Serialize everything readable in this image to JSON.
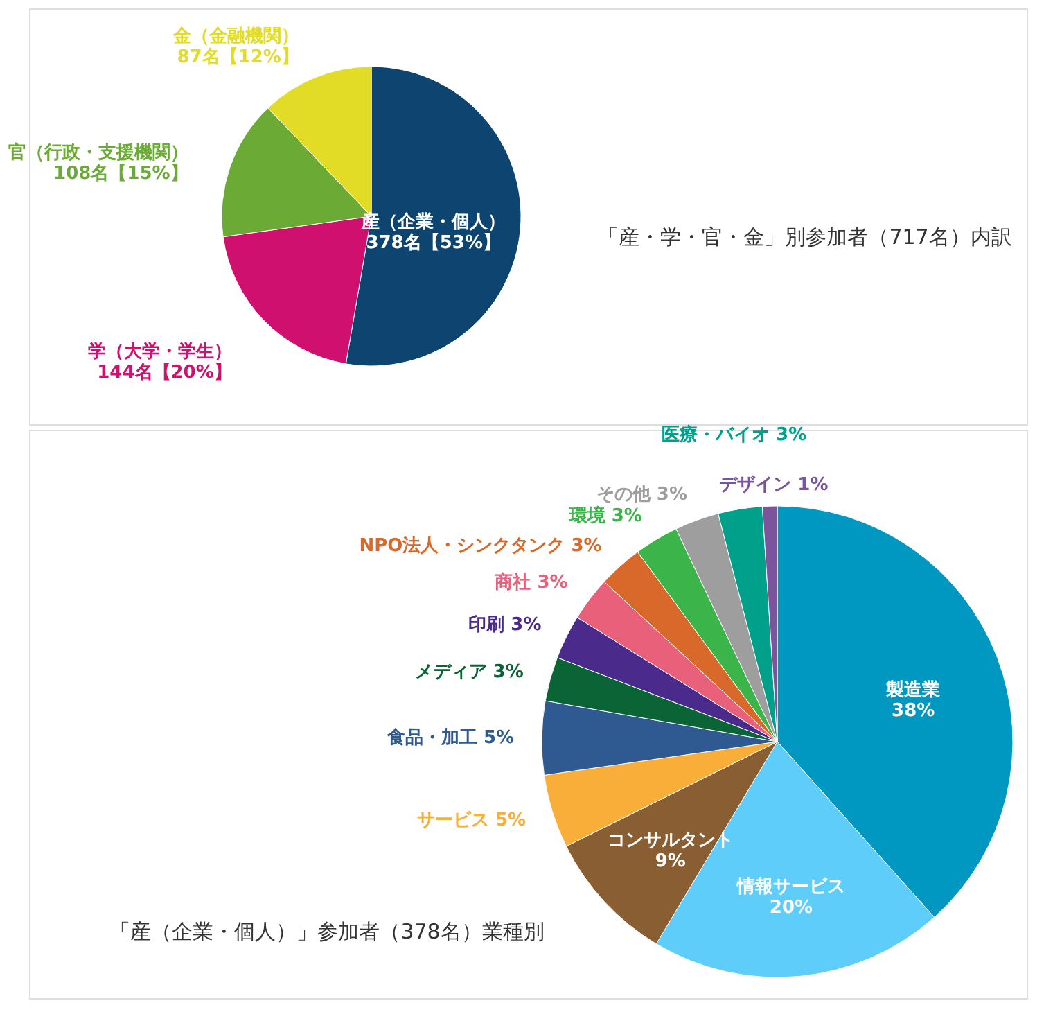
{
  "chart_data": [
    {
      "type": "pie",
      "title": "「産・学・官・金」別参加者（717名）内訳",
      "categories": [
        "産（企業・個人）",
        "学（大学・学生）",
        "官（行政・支援機関）",
        "金（金融機関）"
      ],
      "values": [
        378,
        144,
        108,
        87
      ],
      "value_labels": [
        "378名【53%】",
        "144名【20%】",
        "108名【15%】",
        "87名【12%】"
      ],
      "colors": [
        "#0d4470",
        "#d0106e",
        "#6aaa35",
        "#e2dc27"
      ]
    },
    {
      "type": "pie",
      "title": "「産（企業・個人）」参加者（378名）業種別",
      "categories": [
        "製造業",
        "情報サービス",
        "コンサルタント",
        "サービス",
        "食品・加工",
        "メディア",
        "印刷",
        "商社",
        "NPO法人・シンクタンク",
        "環境",
        "その他",
        "医療・バイオ",
        "デザイン"
      ],
      "values": [
        38,
        20,
        9,
        5,
        5,
        3,
        3,
        3,
        3,
        3,
        3,
        3,
        1
      ],
      "value_labels": [
        "38%",
        "20%",
        "9%",
        "5%",
        "5%",
        "3%",
        "3%",
        "3%",
        "3%",
        "3%",
        "3%",
        "3%",
        "1%"
      ],
      "colors": [
        "#0097c0",
        "#5ecdf9",
        "#8a5e33",
        "#f9ae3a",
        "#2f5a91",
        "#0a6435",
        "#4a2a8a",
        "#e8607a",
        "#d9692a",
        "#3bb54a",
        "#9e9e9e",
        "#00a08a",
        "#7a559e"
      ]
    }
  ]
}
